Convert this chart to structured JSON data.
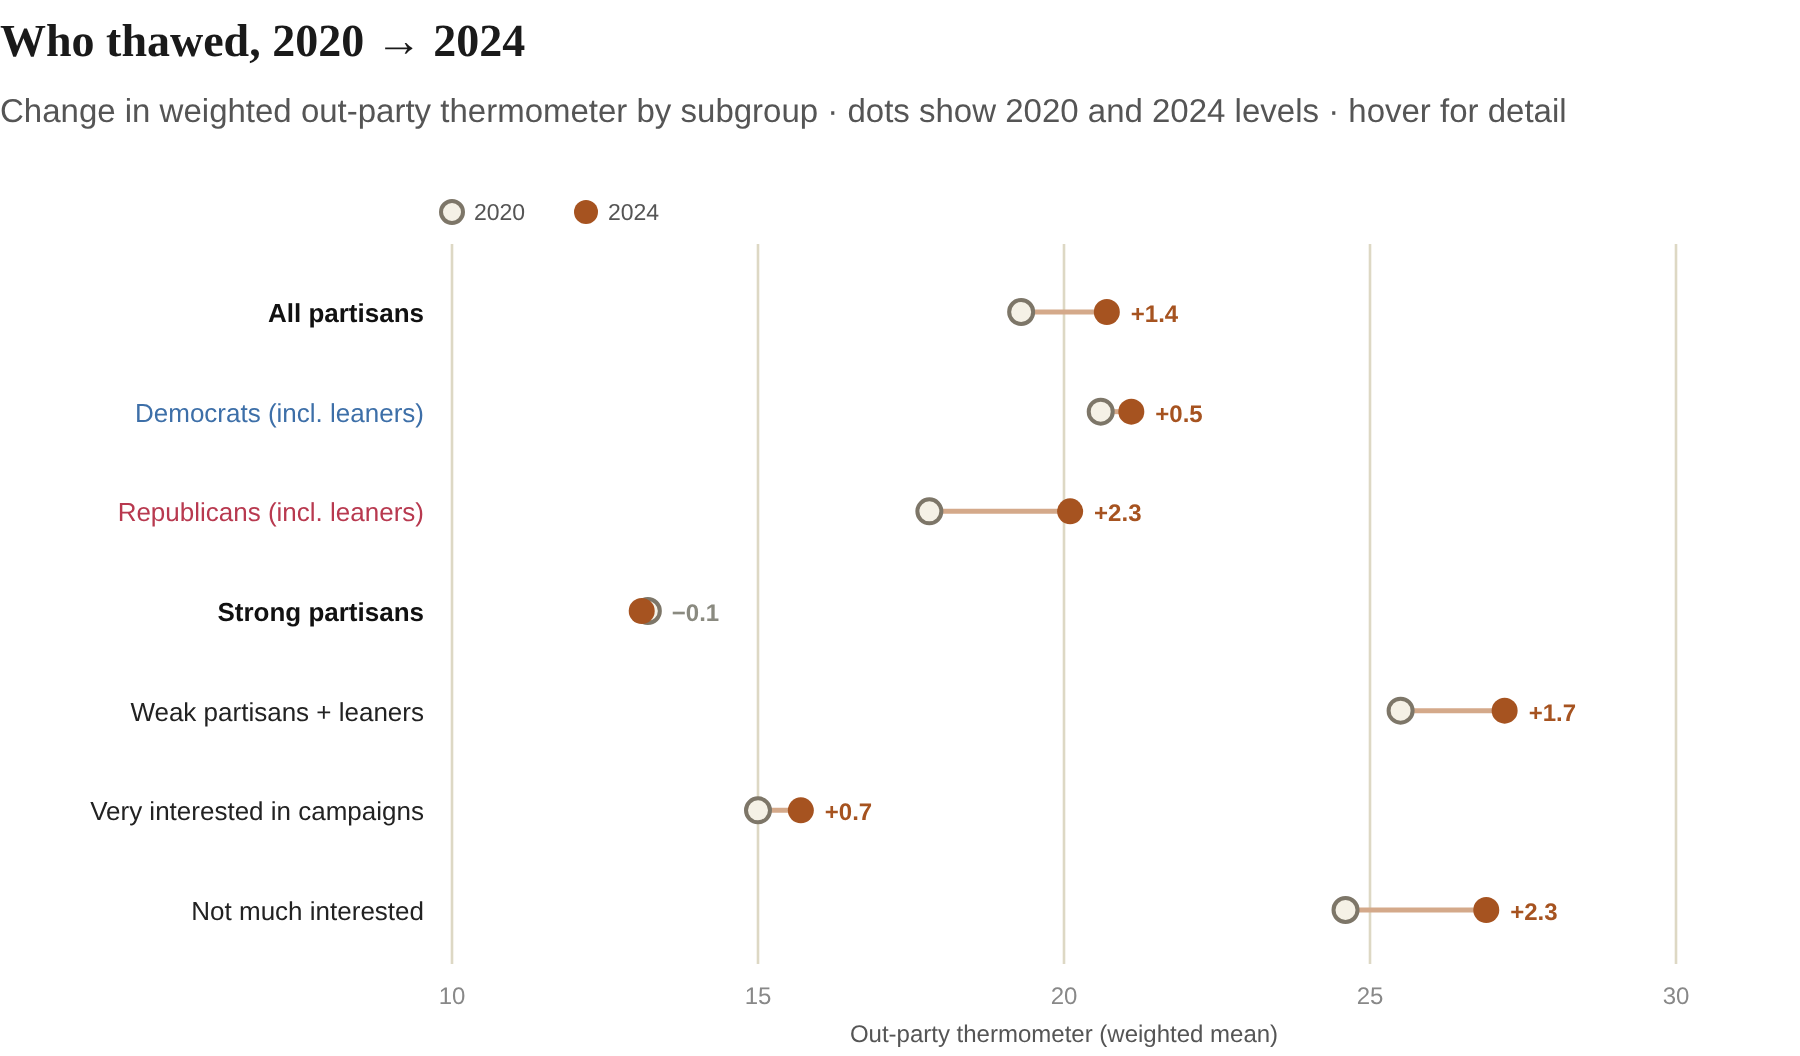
{
  "chart_data": {
    "type": "scatter",
    "orientation": "horizontal",
    "title": "Who thawed, 2020 → 2024",
    "subtitle": "Change in weighted out-party thermometer by subgroup · dots show 2020 and 2024 levels · hover for detail",
    "xlabel": "Out-party thermometer (weighted mean)",
    "categories": [
      "All partisans",
      "Democrats (incl. leaners)",
      "Republicans (incl. leaners)",
      "Strong partisans",
      "Weak partisans + leaners",
      "Very interested in campaigns",
      "Not much interested"
    ],
    "series": [
      {
        "name": "2020",
        "color": "#f5f1e6",
        "values": [
          19.3,
          20.6,
          17.8,
          13.2,
          25.5,
          15.0,
          24.6
        ]
      },
      {
        "name": "2024",
        "color": "#a65320",
        "values": [
          20.7,
          21.1,
          20.1,
          13.1,
          27.2,
          15.7,
          26.9
        ]
      }
    ],
    "annotations": [
      {
        "text": "+1.4",
        "x": 20.7,
        "y": "All partisans"
      },
      {
        "text": "+0.5",
        "x": 21.1,
        "y": "Democrats (incl. leaners)"
      },
      {
        "text": "+2.3",
        "x": 20.1,
        "y": "Republicans (incl. leaners)"
      },
      {
        "text": "−0.1",
        "x": 13.2,
        "y": "Strong partisans"
      },
      {
        "text": "+1.7",
        "x": 27.2,
        "y": "Weak partisans + leaners"
      },
      {
        "text": "+0.7",
        "x": 15.7,
        "y": "Very interested in campaigns"
      },
      {
        "text": "+2.3",
        "x": 26.9,
        "y": "Not much interested"
      }
    ],
    "xlim": [
      10,
      30
    ],
    "xticks": [
      10,
      15,
      20,
      25,
      30
    ],
    "grid": "x",
    "legend": "top",
    "marker": "circle"
  }
}
